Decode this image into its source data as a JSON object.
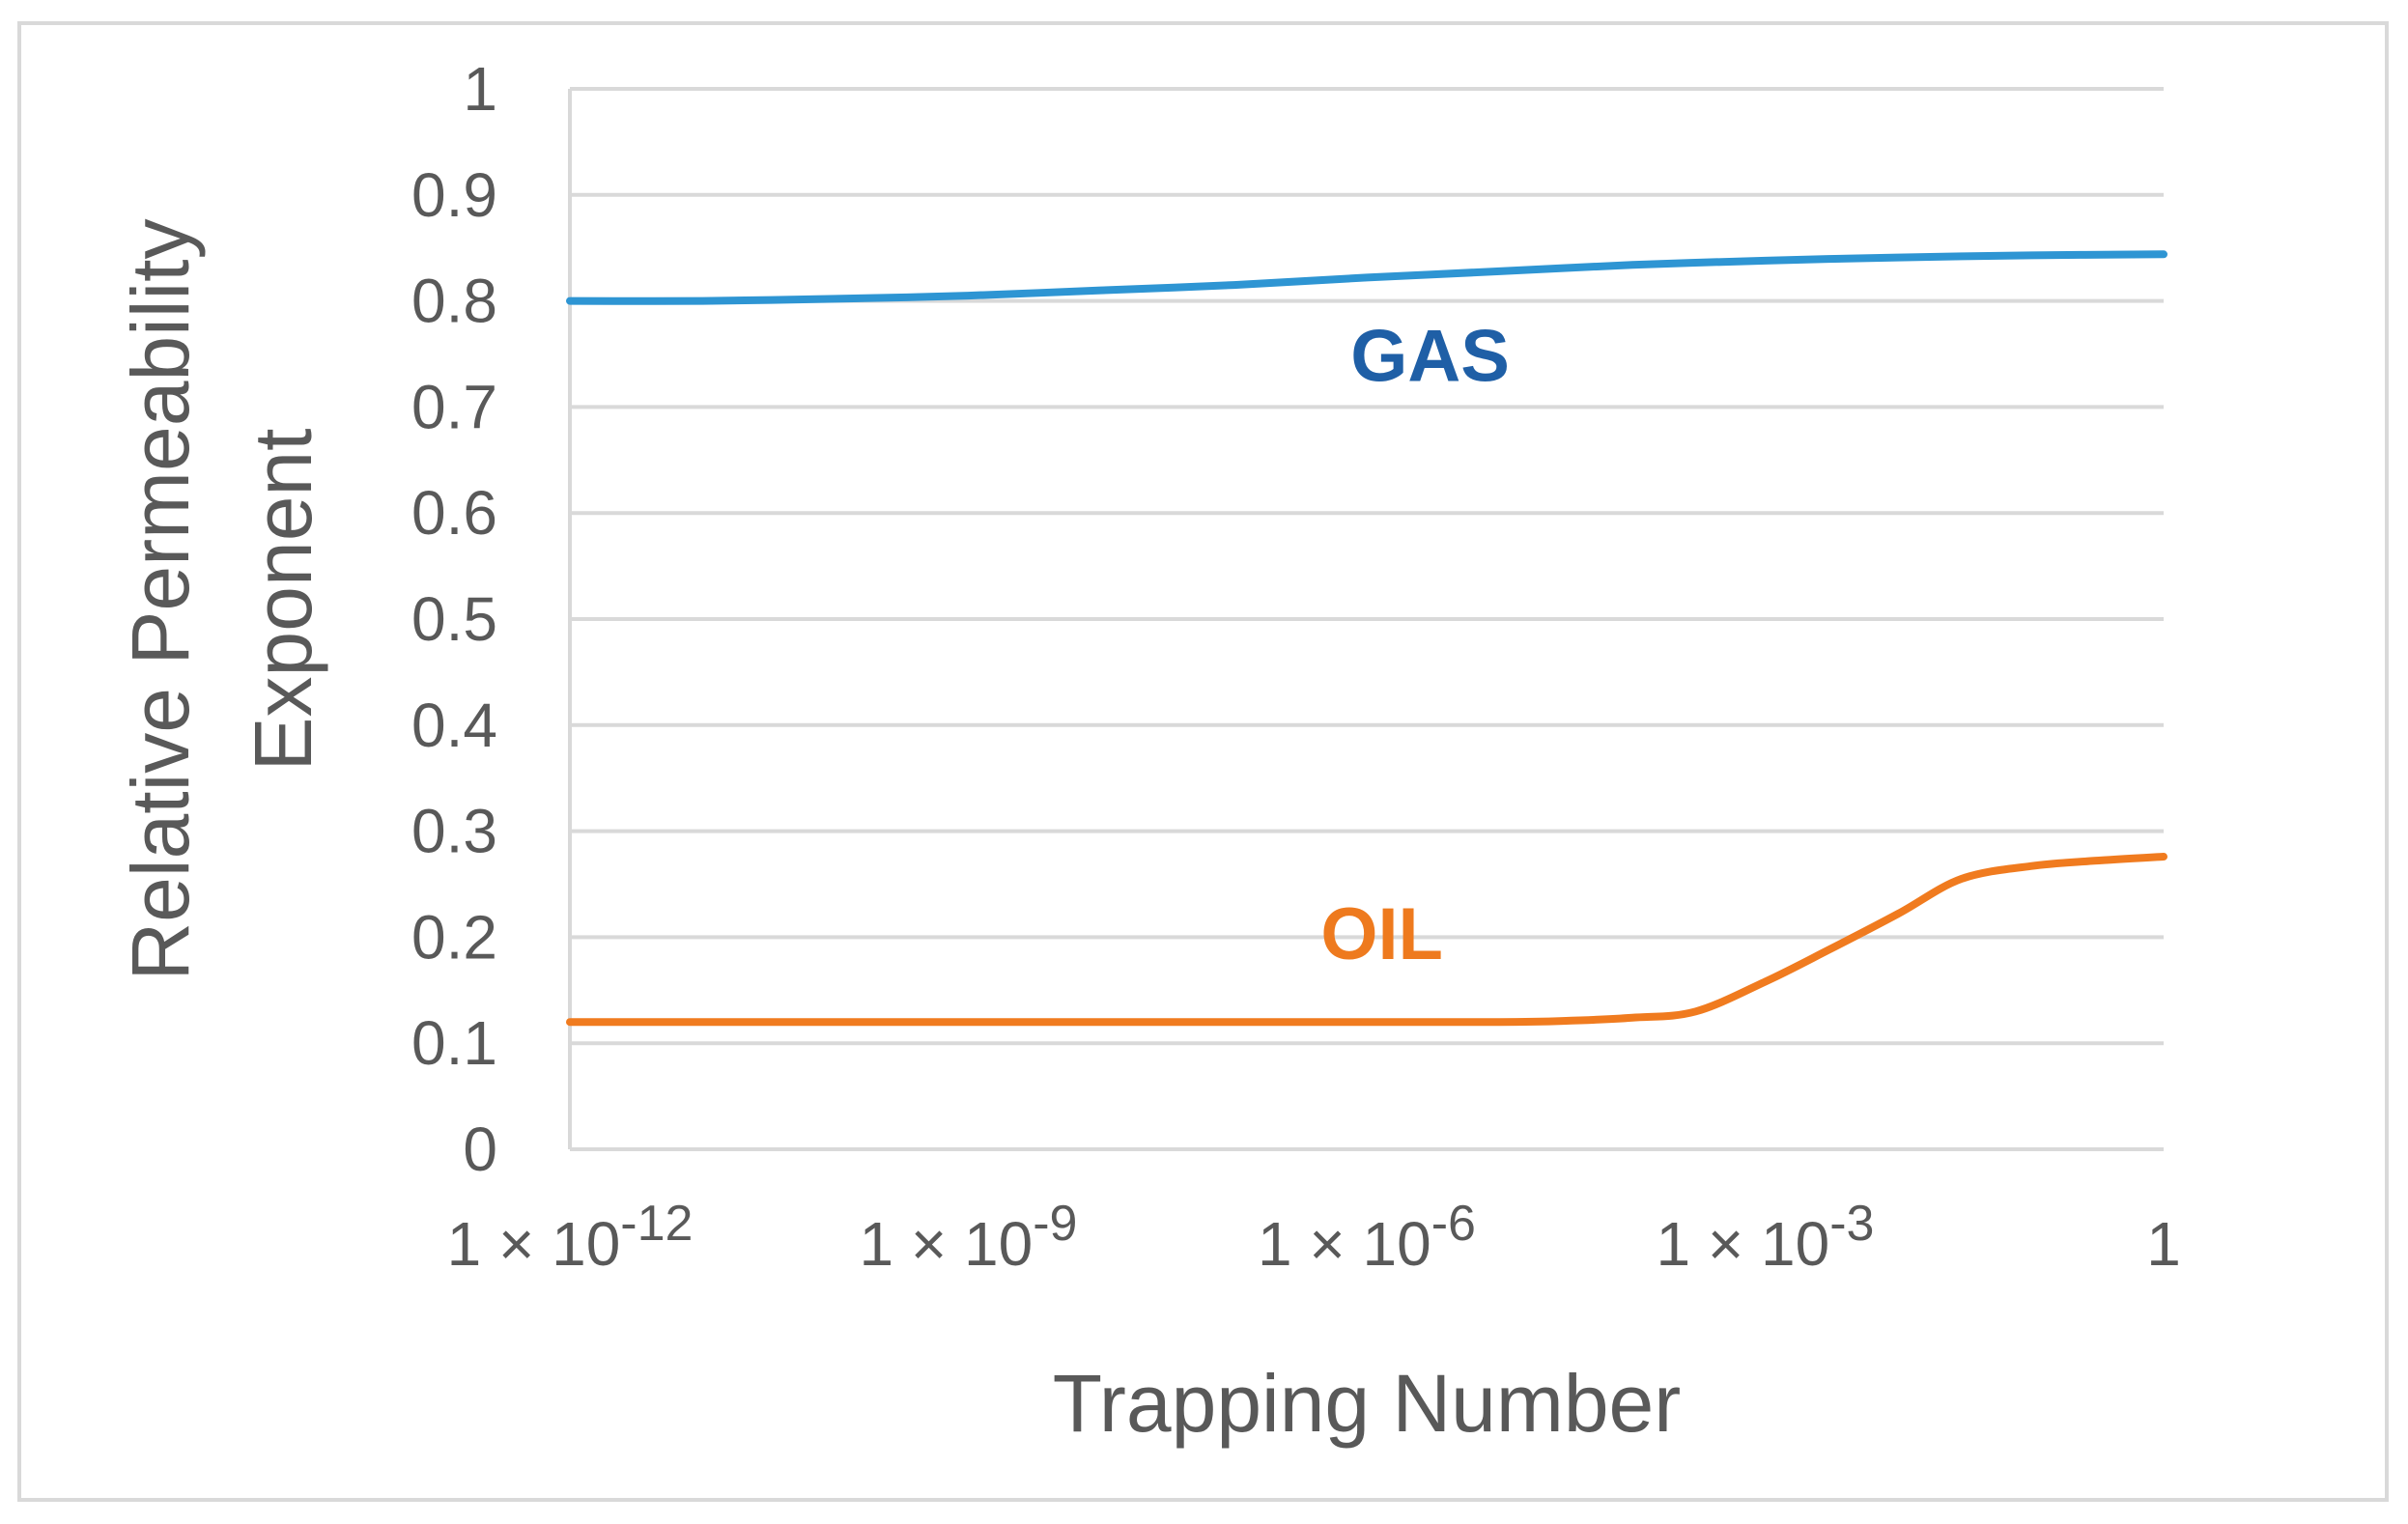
{
  "chart_data": {
    "type": "line",
    "title": "",
    "xlabel": "Trapping Number",
    "ylabel_lines": [
      "Relative Permeability",
      "Exponent"
    ],
    "x_scale": "log",
    "xlim": [
      1e-12,
      1
    ],
    "ylim": [
      0,
      1
    ],
    "grid": true,
    "legend": "none",
    "x_ticks": [
      {
        "value": 1e-12,
        "base": "1 × 10",
        "exp": "-12"
      },
      {
        "value": 1e-09,
        "base": "1 × 10",
        "exp": "-9"
      },
      {
        "value": 1e-06,
        "base": "1 × 10",
        "exp": "-6"
      },
      {
        "value": 0.001,
        "base": "1 × 10",
        "exp": "-3"
      },
      {
        "value": 1,
        "base": "1",
        "exp": ""
      }
    ],
    "y_ticks": [
      "0",
      "0.1",
      "0.2",
      "0.3",
      "0.4",
      "0.5",
      "0.6",
      "0.7",
      "0.8",
      "0.9",
      "1"
    ],
    "series": [
      {
        "name": "GAS",
        "color": "#2e95d3",
        "label_color": "#1f5fa6",
        "x": [
          1e-12,
          1e-11,
          1e-10,
          1e-09,
          1e-08,
          1e-07,
          1e-06,
          1e-05,
          0.0001,
          0.001,
          0.01,
          0.1,
          1
        ],
        "y": [
          0.8,
          0.8,
          0.802,
          0.805,
          0.81,
          0.815,
          0.822,
          0.828,
          0.834,
          0.838,
          0.841,
          0.843,
          0.844
        ]
      },
      {
        "name": "OIL",
        "color": "#f07b1f",
        "label_color": "#ee7a1e",
        "x": [
          1e-12,
          1e-10,
          1e-08,
          1e-06,
          1e-05,
          3e-05,
          0.0001,
          0.0003,
          0.001,
          0.003,
          0.01,
          0.03,
          0.1,
          0.3,
          1
        ],
        "y": [
          0.12,
          0.12,
          0.12,
          0.12,
          0.12,
          0.121,
          0.124,
          0.13,
          0.158,
          0.188,
          0.222,
          0.255,
          0.267,
          0.272,
          0.276
        ]
      }
    ]
  }
}
